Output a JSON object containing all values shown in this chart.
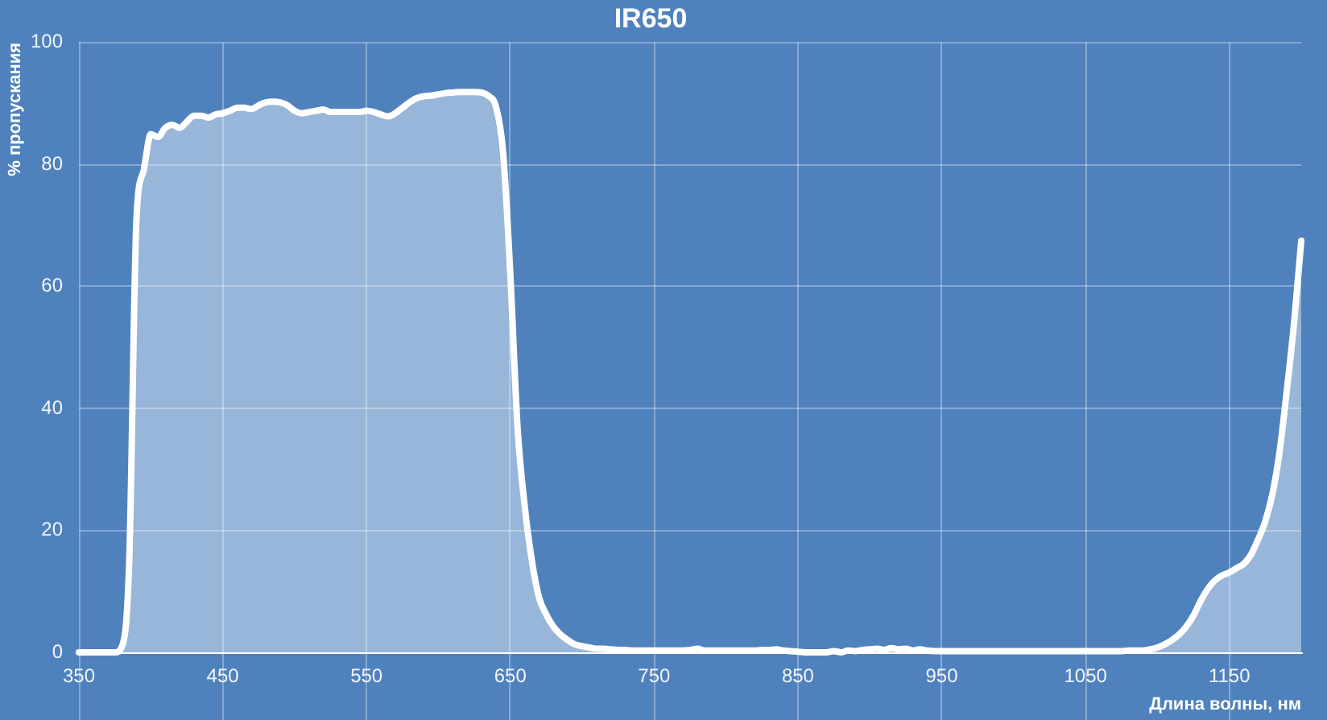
{
  "chart_data": {
    "type": "area",
    "title": "IR650",
    "xlabel": "Длина волны, нм",
    "ylabel": "% пропускания",
    "x": [
      350,
      355,
      360,
      365,
      370,
      375,
      380,
      385,
      390,
      395,
      400,
      405,
      410,
      415,
      420,
      425,
      430,
      435,
      440,
      445,
      450,
      455,
      460,
      465,
      470,
      475,
      480,
      485,
      490,
      495,
      500,
      505,
      510,
      515,
      520,
      525,
      530,
      535,
      540,
      545,
      550,
      555,
      560,
      565,
      570,
      575,
      580,
      585,
      590,
      595,
      600,
      605,
      610,
      615,
      620,
      625,
      630,
      635,
      640,
      645,
      650,
      655,
      660,
      665,
      670,
      675,
      680,
      685,
      690,
      695,
      700,
      705,
      710,
      715,
      720,
      725,
      730,
      735,
      740,
      745,
      750,
      755,
      760,
      765,
      770,
      775,
      780,
      785,
      790,
      795,
      800,
      805,
      810,
      815,
      820,
      825,
      830,
      835,
      840,
      845,
      850,
      855,
      860,
      865,
      870,
      875,
      880,
      885,
      890,
      895,
      900,
      905,
      910,
      915,
      920,
      925,
      930,
      935,
      940,
      945,
      950,
      955,
      960,
      965,
      970,
      975,
      980,
      985,
      990,
      995,
      1000,
      1005,
      1010,
      1015,
      1020,
      1025,
      1030,
      1035,
      1040,
      1045,
      1050,
      1055,
      1060,
      1065,
      1070,
      1075,
      1080,
      1085,
      1090,
      1095,
      1100,
      1105,
      1110,
      1115,
      1120,
      1125,
      1130,
      1135,
      1140,
      1145,
      1150,
      1155,
      1160,
      1165,
      1170,
      1175,
      1180,
      1185,
      1190,
      1195,
      1200
    ],
    "series": [
      {
        "color": "#ffffff",
        "values": [
          0,
          0,
          0,
          0,
          0,
          0,
          1,
          15,
          71,
          79,
          85,
          84.5,
          86,
          86.5,
          86,
          87,
          88,
          88,
          87.7,
          88.2,
          88.4,
          88.8,
          89.3,
          89.3,
          89.1,
          89.7,
          90.2,
          90.3,
          90.2,
          89.7,
          88.8,
          88.4,
          88.6,
          88.8,
          89,
          88.6,
          88.6,
          88.6,
          88.6,
          88.6,
          88.8,
          88.6,
          88.2,
          87.9,
          88.4,
          89.3,
          90.2,
          90.9,
          91.2,
          91.3,
          91.5,
          91.7,
          91.8,
          91.9,
          91.9,
          91.9,
          91.8,
          91.2,
          89.5,
          82,
          62,
          37,
          24,
          15,
          9,
          6.2,
          4.2,
          2.9,
          2,
          1.3,
          1,
          0.8,
          0.6,
          0.6,
          0.5,
          0.4,
          0.4,
          0.3,
          0.3,
          0.3,
          0.3,
          0.3,
          0.3,
          0.3,
          0.3,
          0.4,
          0.6,
          0.3,
          0.3,
          0.3,
          0.3,
          0.3,
          0.3,
          0.3,
          0.3,
          0.4,
          0.4,
          0.5,
          0.3,
          0.2,
          0.1,
          0,
          0,
          0,
          0,
          0.2,
          0,
          0.3,
          0.2,
          0.4,
          0.5,
          0.6,
          0.4,
          0.7,
          0.5,
          0.6,
          0.3,
          0.5,
          0.3,
          0.2,
          0.2,
          0.2,
          0.2,
          0.2,
          0.2,
          0.2,
          0.2,
          0.2,
          0.2,
          0.2,
          0.2,
          0.2,
          0.2,
          0.2,
          0.2,
          0.2,
          0.2,
          0.2,
          0.2,
          0.2,
          0.2,
          0.2,
          0.2,
          0.2,
          0.2,
          0.2,
          0.3,
          0.3,
          0.3,
          0.5,
          0.8,
          1.3,
          2,
          2.9,
          4.2,
          6,
          8.4,
          10.4,
          11.8,
          12.6,
          13.1,
          13.8,
          14.5,
          16,
          18.5,
          21.5,
          26,
          33,
          43,
          54,
          67.5
        ]
      }
    ],
    "xlim": [
      350,
      1200
    ],
    "xticks": [
      350,
      450,
      550,
      650,
      750,
      850,
      950,
      1050,
      1150
    ],
    "ylim": [
      0,
      100
    ],
    "yticks": [
      0,
      20,
      40,
      60,
      80,
      100
    ],
    "grid": true,
    "marker": "none",
    "line_style": "solid"
  }
}
